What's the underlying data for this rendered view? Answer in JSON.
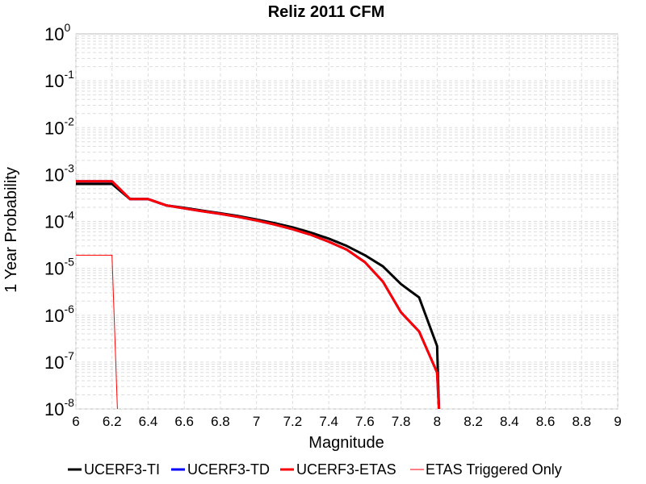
{
  "chart_data": {
    "type": "line",
    "title": "Reliz 2011 CFM",
    "xlabel": "Magnitude",
    "ylabel": "1 Year Probability",
    "xlim": [
      6,
      9
    ],
    "ylim": [
      1e-08,
      1
    ],
    "yscale": "log",
    "grid": true,
    "legend_position": "bottom",
    "x_ticks": [
      6,
      6.2,
      6.4,
      6.6,
      6.8,
      7,
      7.2,
      7.4,
      7.6,
      7.8,
      8,
      8.2,
      8.4,
      8.6,
      8.8,
      9
    ],
    "x_tick_labels": [
      "6",
      "6.2",
      "6.4",
      "6.6",
      "6.8",
      "7",
      "7.2",
      "7.4",
      "7.6",
      "7.8",
      "8",
      "8.2",
      "8.4",
      "8.6",
      "8.8",
      "9"
    ],
    "y_ticks": [
      {
        "base": "10",
        "exp": "-8"
      },
      {
        "base": "10",
        "exp": "-7"
      },
      {
        "base": "10",
        "exp": "-6"
      },
      {
        "base": "10",
        "exp": "-5"
      },
      {
        "base": "10",
        "exp": "-4"
      },
      {
        "base": "10",
        "exp": "-3"
      },
      {
        "base": "10",
        "exp": "-2"
      },
      {
        "base": "10",
        "exp": "-1"
      },
      {
        "base": "10",
        "exp": "0"
      }
    ],
    "series": [
      {
        "name": "UCERF3-TI",
        "color": "#000000",
        "width": 3,
        "x": [
          6.0,
          6.2,
          6.3,
          6.4,
          6.5,
          6.6,
          6.7,
          6.8,
          6.9,
          7.0,
          7.1,
          7.2,
          7.3,
          7.4,
          7.5,
          7.6,
          7.7,
          7.8,
          7.9,
          8.0,
          8.01
        ],
        "y": [
          0.00063,
          0.00063,
          0.0003,
          0.0003,
          0.00022,
          0.000195,
          0.00017,
          0.00015,
          0.00013,
          0.00011,
          9.2e-05,
          7.5e-05,
          5.8e-05,
          4.3e-05,
          3e-05,
          1.9e-05,
          1.1e-05,
          4.6e-06,
          2.4e-06,
          2.2e-07,
          1e-08
        ]
      },
      {
        "name": "UCERF3-TD",
        "color": "#0000ff",
        "width": 3,
        "x": [
          6.0,
          6.2,
          6.3,
          6.4,
          6.5,
          6.6,
          6.7,
          6.8,
          6.9,
          7.0,
          7.1,
          7.2,
          7.3,
          7.4,
          7.5,
          7.6,
          7.7,
          7.8,
          7.9,
          8.0,
          8.01
        ],
        "y": [
          0.00072,
          0.00072,
          0.0003,
          0.0003,
          0.00022,
          0.00019,
          0.000165,
          0.000145,
          0.000125,
          0.000105,
          8.6e-05,
          6.8e-05,
          5.2e-05,
          3.7e-05,
          2.5e-05,
          1.35e-05,
          5.2e-06,
          1.15e-06,
          4.5e-07,
          6e-08,
          1e-08
        ]
      },
      {
        "name": "UCERF3-ETAS",
        "color": "#ff0000",
        "width": 3,
        "x": [
          6.0,
          6.2,
          6.3,
          6.4,
          6.5,
          6.6,
          6.7,
          6.8,
          6.9,
          7.0,
          7.1,
          7.2,
          7.3,
          7.4,
          7.5,
          7.6,
          7.7,
          7.8,
          7.9,
          8.0,
          8.01
        ],
        "y": [
          0.00072,
          0.00072,
          0.0003,
          0.0003,
          0.00022,
          0.00019,
          0.000165,
          0.000145,
          0.000125,
          0.000105,
          8.6e-05,
          6.8e-05,
          5.2e-05,
          3.7e-05,
          2.5e-05,
          1.35e-05,
          5.2e-06,
          1.15e-06,
          4.5e-07,
          6e-08,
          1e-08
        ]
      },
      {
        "name": "ETAS Triggered Only",
        "color": "#ff0000",
        "width": 1,
        "x": [
          6.0,
          6.2,
          6.23
        ],
        "y": [
          1.9e-05,
          1.9e-05,
          1e-08
        ]
      }
    ]
  }
}
